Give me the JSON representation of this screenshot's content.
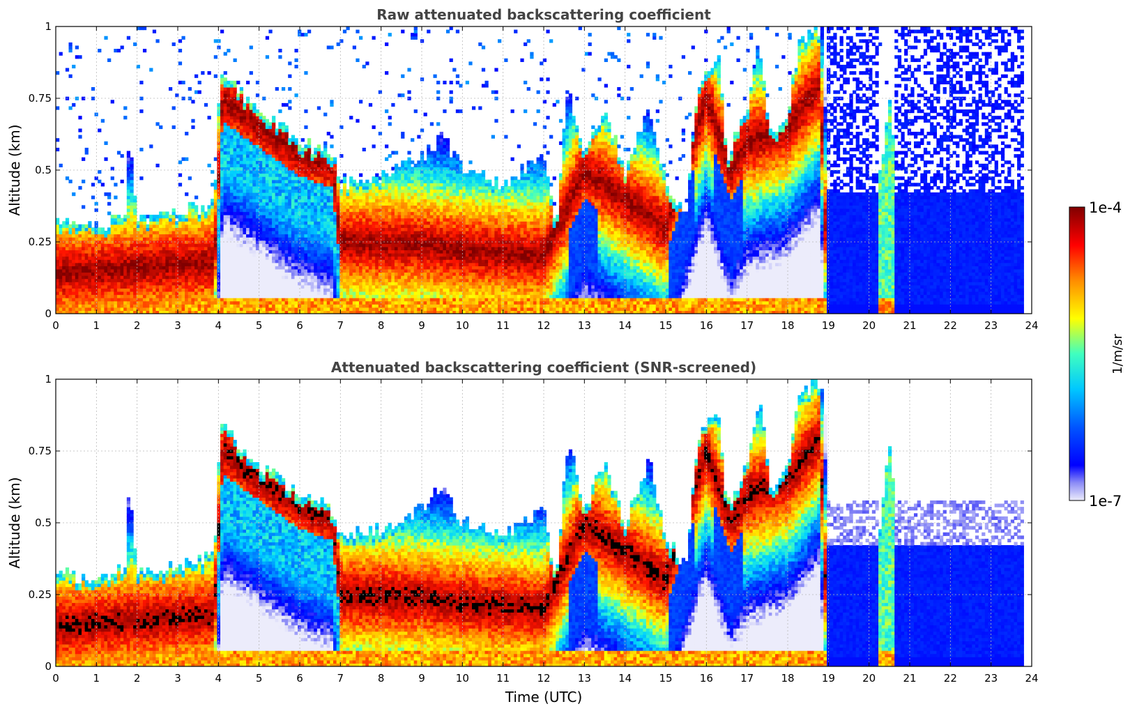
{
  "chart_data": [
    {
      "type": "heatmap",
      "title": "Raw attenuated backscattering coefficient",
      "xlabel": "",
      "ylabel": "Altitude (km)",
      "xlim": [
        0,
        24
      ],
      "ylim": [
        0,
        1
      ],
      "x_ticks": [
        "0",
        "1",
        "2",
        "3",
        "4",
        "5",
        "6",
        "7",
        "8",
        "9",
        "10",
        "11",
        "12",
        "13",
        "14",
        "15",
        "16",
        "17",
        "18",
        "19",
        "20",
        "21",
        "22",
        "23",
        "24"
      ],
      "y_ticks": [
        "0",
        "0.25",
        "0.5",
        "0.75",
        "1"
      ],
      "grid": true,
      "data_extent_hours": 23.8,
      "noise_region_start_hours": 19,
      "colorbar_ref": "colorbar"
    },
    {
      "type": "heatmap",
      "title": "Attenuated backscattering coefficient (SNR-screened)",
      "xlabel": "Time (UTC)",
      "ylabel": "Altitude (km)",
      "xlim": [
        0,
        24
      ],
      "ylim": [
        0,
        1
      ],
      "x_ticks": [
        "0",
        "1",
        "2",
        "3",
        "4",
        "5",
        "6",
        "7",
        "8",
        "9",
        "10",
        "11",
        "12",
        "13",
        "14",
        "15",
        "16",
        "17",
        "18",
        "19",
        "20",
        "21",
        "22",
        "23",
        "24"
      ],
      "y_ticks": [
        "0",
        "0.25",
        "0.5",
        "0.75",
        "1"
      ],
      "grid": true,
      "data_extent_hours": 23.8,
      "noise_region_start_hours": 19,
      "colorbar_ref": "colorbar"
    }
  ],
  "colorbar": {
    "min_label": "1e-7",
    "max_label": "1e-4",
    "unit": "1/m/sr",
    "scale": "log",
    "colormap": [
      "#e8e8fa",
      "#0000ff",
      "#00ffff",
      "#ffff00",
      "#ff0000",
      "#800000"
    ]
  },
  "profile_model": {
    "surface_layer_top_km": [
      [
        0,
        0.33
      ],
      [
        1,
        0.3
      ],
      [
        1.7,
        0.34
      ],
      [
        1.8,
        0.62
      ],
      [
        2,
        0.32
      ],
      [
        3,
        0.35
      ],
      [
        3.9,
        0.38
      ],
      [
        4.05,
        0.85
      ],
      [
        5,
        0.7
      ],
      [
        6,
        0.6
      ],
      [
        6.8,
        0.55
      ],
      [
        7,
        0.45
      ],
      [
        8,
        0.48
      ],
      [
        9,
        0.55
      ],
      [
        9.5,
        0.62
      ],
      [
        10,
        0.5
      ],
      [
        11,
        0.45
      ],
      [
        12,
        0.55
      ],
      [
        12.3,
        0.3
      ],
      [
        12.6,
        0.8
      ],
      [
        13,
        0.55
      ],
      [
        13.5,
        0.72
      ],
      [
        14,
        0.5
      ],
      [
        14.6,
        0.72
      ],
      [
        15,
        0.45
      ],
      [
        15.5,
        0.35
      ],
      [
        15.8,
        0.8
      ],
      [
        16.3,
        0.9
      ],
      [
        16.5,
        0.55
      ],
      [
        17,
        0.7
      ],
      [
        17.3,
        0.95
      ],
      [
        17.6,
        0.6
      ],
      [
        18,
        0.7
      ],
      [
        18.3,
        0.95
      ],
      [
        18.9,
        1.0
      ],
      [
        19,
        0.45
      ],
      [
        20,
        0.45
      ],
      [
        20.3,
        0.5
      ],
      [
        20.5,
        0.78
      ],
      [
        20.7,
        0.45
      ],
      [
        22,
        0.43
      ],
      [
        23.8,
        0.42
      ]
    ],
    "dense_core_km": [
      [
        0,
        0.14
      ],
      [
        3.9,
        0.18
      ],
      [
        4.1,
        0.75
      ],
      [
        5,
        0.66
      ],
      [
        6,
        0.56
      ],
      [
        6.8,
        0.52
      ],
      [
        7,
        0.25
      ],
      [
        9,
        0.24
      ],
      [
        10,
        0.22
      ],
      [
        12,
        0.2
      ],
      [
        13,
        0.5
      ],
      [
        14,
        0.4
      ],
      [
        15,
        0.3
      ],
      [
        16,
        0.75
      ],
      [
        16.6,
        0.5
      ],
      [
        17,
        0.6
      ],
      [
        18,
        0.65
      ],
      [
        18.8,
        0.8
      ],
      [
        19,
        0.0
      ],
      [
        24,
        0.0
      ]
    ]
  }
}
